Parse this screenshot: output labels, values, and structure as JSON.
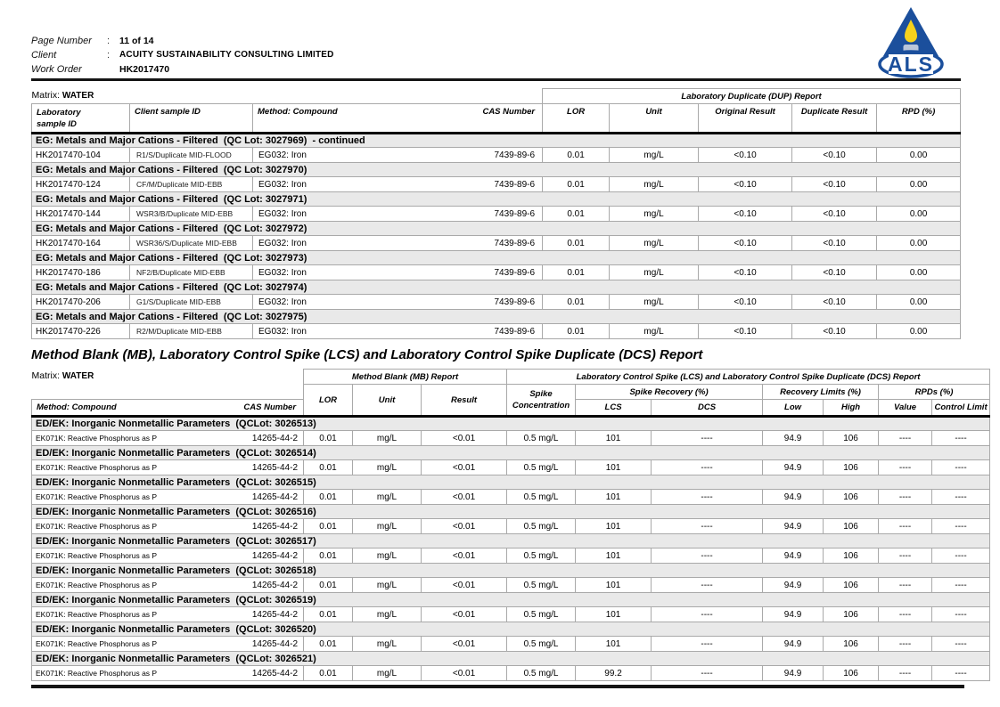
{
  "report_header": {
    "rows": [
      {
        "label": "Page Number",
        "sep": ":",
        "value": "11 of 14"
      },
      {
        "label": "Client",
        "sep": ":",
        "value": "ACUITY SUSTAINABILITY CONSULTING LIMITED"
      },
      {
        "label": "Work Order",
        "sep": "",
        "value": "HK2017470"
      }
    ],
    "logo_text": "ALS"
  },
  "colors": {
    "logo_blue": "#1b4f9c",
    "flame_yellow": "#f6d21c",
    "candle_gray": "#b9c6da",
    "group_row_bg": "#e9e9e9"
  },
  "dup_table": {
    "matrix_label": "Matrix:",
    "matrix_value": "WATER",
    "spanner": "Laboratory Duplicate (DUP) Report",
    "col_headers": {
      "lab_line1": "Laboratory",
      "lab_line2": "sample ID",
      "client": "Client sample ID",
      "method": "Method: Compound",
      "cas": "CAS Number",
      "lor": "LOR",
      "unit": "Unit",
      "original": "Original Result",
      "duplicate": "Duplicate Result",
      "rpd": "RPD (%)"
    },
    "groups": [
      {
        "title": "EG: Metals and Major Cations - Filtered  (QC Lot: 3027969)  - continued",
        "rows": [
          [
            "HK2017470-104",
            "R1/S/Duplicate MID-FLOOD",
            "EG032: Iron",
            "7439-89-6",
            "0.01",
            "mg/L",
            "<0.10",
            "<0.10",
            "0.00"
          ]
        ]
      },
      {
        "title": "EG: Metals and Major Cations - Filtered  (QC Lot: 3027970)",
        "rows": [
          [
            "HK2017470-124",
            "CF/M/Duplicate MID-EBB",
            "EG032: Iron",
            "7439-89-6",
            "0.01",
            "mg/L",
            "<0.10",
            "<0.10",
            "0.00"
          ]
        ]
      },
      {
        "title": "EG: Metals and Major Cations - Filtered  (QC Lot: 3027971)",
        "rows": [
          [
            "HK2017470-144",
            "WSR3/B/Duplicate MID-EBB",
            "EG032: Iron",
            "7439-89-6",
            "0.01",
            "mg/L",
            "<0.10",
            "<0.10",
            "0.00"
          ]
        ]
      },
      {
        "title": "EG: Metals and Major Cations - Filtered  (QC Lot: 3027972)",
        "rows": [
          [
            "HK2017470-164",
            "WSR36/S/Duplicate MID-EBB",
            "EG032: Iron",
            "7439-89-6",
            "0.01",
            "mg/L",
            "<0.10",
            "<0.10",
            "0.00"
          ]
        ]
      },
      {
        "title": "EG: Metals and Major Cations - Filtered  (QC Lot: 3027973)",
        "rows": [
          [
            "HK2017470-186",
            "NF2/B/Duplicate MID-EBB",
            "EG032: Iron",
            "7439-89-6",
            "0.01",
            "mg/L",
            "<0.10",
            "<0.10",
            "0.00"
          ]
        ]
      },
      {
        "title": "EG: Metals and Major Cations - Filtered  (QC Lot: 3027974)",
        "rows": [
          [
            "HK2017470-206",
            "G1/S/Duplicate MID-EBB",
            "EG032: Iron",
            "7439-89-6",
            "0.01",
            "mg/L",
            "<0.10",
            "<0.10",
            "0.00"
          ]
        ]
      },
      {
        "title": "EG: Metals and Major Cations - Filtered  (QC Lot: 3027975)",
        "rows": [
          [
            "HK2017470-226",
            "R2/M/Duplicate MID-EBB",
            "EG032: Iron",
            "7439-89-6",
            "0.01",
            "mg/L",
            "<0.10",
            "<0.10",
            "0.00"
          ]
        ]
      }
    ]
  },
  "mb_table": {
    "section_title": "Method Blank (MB), Laboratory Control Spike (LCS) and Laboratory Control Spike Duplicate (DCS) Report",
    "matrix_label": "Matrix:",
    "matrix_value": "WATER",
    "mb_spanner": "Method Blank (MB) Report",
    "lcs_spanner": "Laboratory Control Spike (LCS) and Laboratory Control Spike Duplicate (DCS) Report",
    "sub_headers": {
      "spike_line1": "Spike",
      "spike_line2": "Concentration",
      "spike_recovery": "Spike Recovery (%)",
      "recovery_limits": "Recovery Limits (%)",
      "rpds": "RPDs (%)"
    },
    "col_headers": {
      "method": "Method: Compound",
      "cas": "CAS Number",
      "lor": "LOR",
      "unit": "Unit",
      "result": "Result",
      "lcs": "LCS",
      "dcs": "DCS",
      "low": "Low",
      "high": "High",
      "value": "Value",
      "control_limit": "Control Limit"
    },
    "groups": [
      {
        "title": "ED/EK: Inorganic Nonmetallic Parameters  (QCLot: 3026513)",
        "rows": [
          [
            "EK071K: Reactive Phosphorus as P",
            "14265-44-2",
            "0.01",
            "mg/L",
            "<0.01",
            "0.5 mg/L",
            "101",
            "----",
            "94.9",
            "106",
            "----",
            "----"
          ]
        ]
      },
      {
        "title": "ED/EK: Inorganic Nonmetallic Parameters  (QCLot: 3026514)",
        "rows": [
          [
            "EK071K: Reactive Phosphorus as P",
            "14265-44-2",
            "0.01",
            "mg/L",
            "<0.01",
            "0.5 mg/L",
            "101",
            "----",
            "94.9",
            "106",
            "----",
            "----"
          ]
        ]
      },
      {
        "title": "ED/EK: Inorganic Nonmetallic Parameters  (QCLot: 3026515)",
        "rows": [
          [
            "EK071K: Reactive Phosphorus as P",
            "14265-44-2",
            "0.01",
            "mg/L",
            "<0.01",
            "0.5 mg/L",
            "101",
            "----",
            "94.9",
            "106",
            "----",
            "----"
          ]
        ]
      },
      {
        "title": "ED/EK: Inorganic Nonmetallic Parameters  (QCLot: 3026516)",
        "rows": [
          [
            "EK071K: Reactive Phosphorus as P",
            "14265-44-2",
            "0.01",
            "mg/L",
            "<0.01",
            "0.5 mg/L",
            "101",
            "----",
            "94.9",
            "106",
            "----",
            "----"
          ]
        ]
      },
      {
        "title": "ED/EK: Inorganic Nonmetallic Parameters  (QCLot: 3026517)",
        "rows": [
          [
            "EK071K: Reactive Phosphorus as P",
            "14265-44-2",
            "0.01",
            "mg/L",
            "<0.01",
            "0.5 mg/L",
            "101",
            "----",
            "94.9",
            "106",
            "----",
            "----"
          ]
        ]
      },
      {
        "title": "ED/EK: Inorganic Nonmetallic Parameters  (QCLot: 3026518)",
        "rows": [
          [
            "EK071K: Reactive Phosphorus as P",
            "14265-44-2",
            "0.01",
            "mg/L",
            "<0.01",
            "0.5 mg/L",
            "101",
            "----",
            "94.9",
            "106",
            "----",
            "----"
          ]
        ]
      },
      {
        "title": "ED/EK: Inorganic Nonmetallic Parameters  (QCLot: 3026519)",
        "rows": [
          [
            "EK071K: Reactive Phosphorus as P",
            "14265-44-2",
            "0.01",
            "mg/L",
            "<0.01",
            "0.5 mg/L",
            "101",
            "----",
            "94.9",
            "106",
            "----",
            "----"
          ]
        ]
      },
      {
        "title": "ED/EK: Inorganic Nonmetallic Parameters  (QCLot: 3026520)",
        "rows": [
          [
            "EK071K: Reactive Phosphorus as P",
            "14265-44-2",
            "0.01",
            "mg/L",
            "<0.01",
            "0.5 mg/L",
            "101",
            "----",
            "94.9",
            "106",
            "----",
            "----"
          ]
        ]
      },
      {
        "title": "ED/EK: Inorganic Nonmetallic Parameters  (QCLot: 3026521)",
        "rows": [
          [
            "EK071K: Reactive Phosphorus as P",
            "14265-44-2",
            "0.01",
            "mg/L",
            "<0.01",
            "0.5 mg/L",
            "99.2",
            "----",
            "94.9",
            "106",
            "----",
            "----"
          ]
        ]
      }
    ]
  }
}
